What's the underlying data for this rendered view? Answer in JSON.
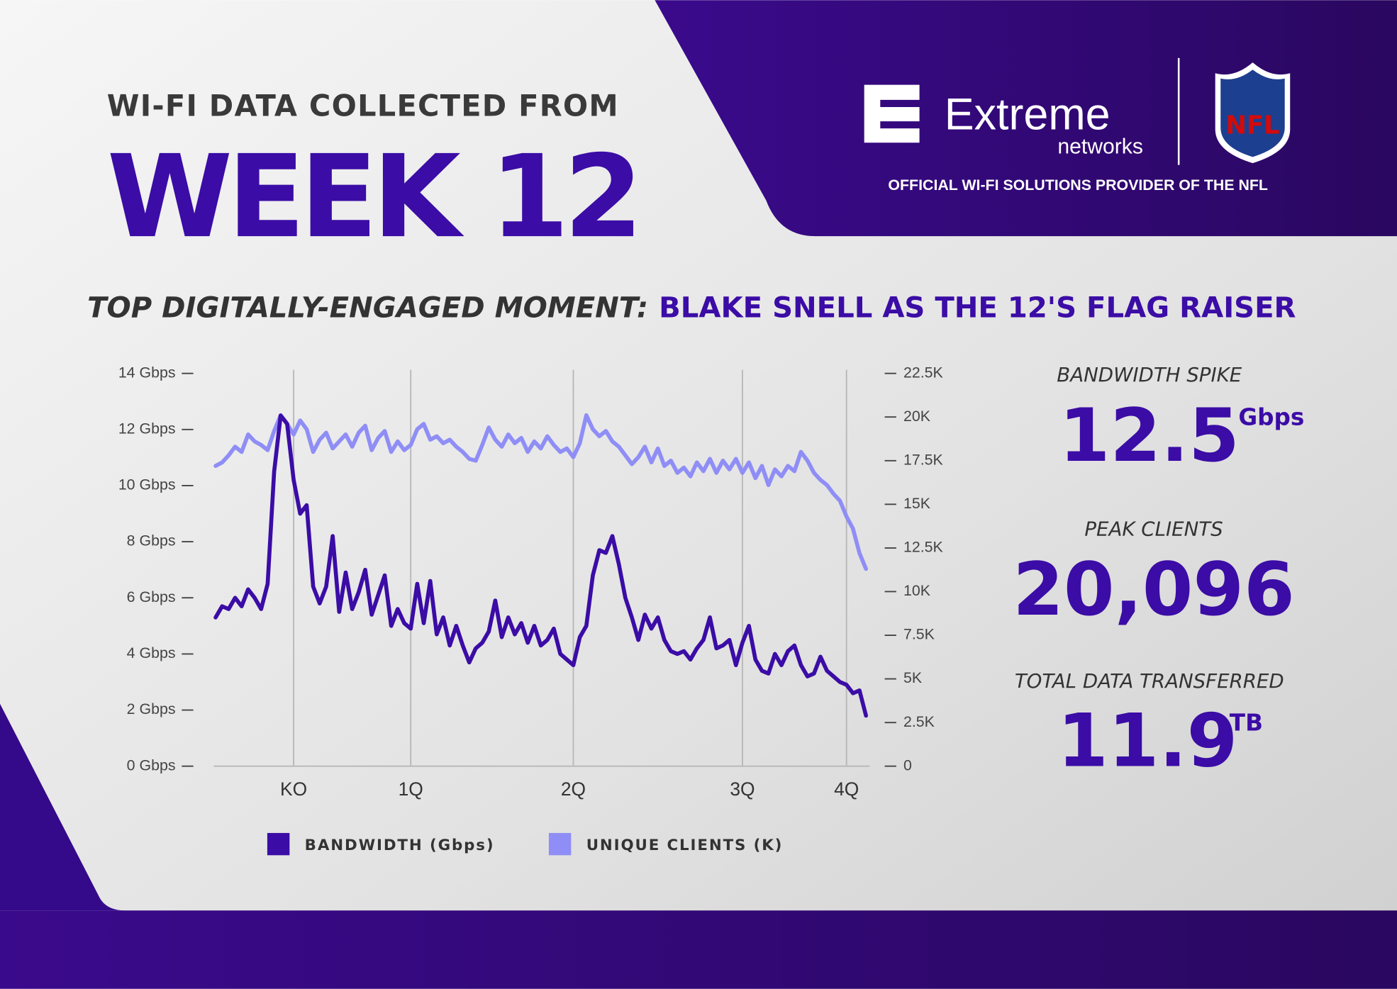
{
  "header": {
    "kicker": "WI-FI DATA COLLECTED FROM",
    "title": "WEEK 12",
    "moment_label": "TOP DIGITALLY-ENGAGED MOMENT:",
    "moment": "BLAKE SNELL AS THE 12'S FLAG RAISER"
  },
  "branding": {
    "brand": "Extreme",
    "brand_sub": "networks",
    "league": "NFL",
    "tagline": "OFFICIAL WI-FI SOLUTIONS PROVIDER OF THE NFL"
  },
  "stats": [
    {
      "label": "BANDWIDTH SPIKE",
      "value": "12.5",
      "unit": "Gbps"
    },
    {
      "label": "PEAK CLIENTS",
      "value": "20,096"
    },
    {
      "label": "TOTAL DATA TRANSFERRED",
      "value": "11.9",
      "unit": "TB"
    }
  ],
  "chart_data": {
    "type": "line",
    "categories": [
      null,
      null,
      null,
      null,
      null,
      null,
      null,
      null,
      null,
      null,
      null,
      null,
      "KO",
      null,
      null,
      null,
      null,
      null,
      null,
      null,
      null,
      null,
      null,
      null,
      null,
      null,
      null,
      null,
      null,
      null,
      "1Q",
      null,
      null,
      null,
      null,
      null,
      null,
      null,
      null,
      null,
      null,
      null,
      null,
      null,
      null,
      null,
      null,
      null,
      null,
      null,
      null,
      null,
      null,
      null,
      null,
      "2Q",
      null,
      null,
      null,
      null,
      null,
      null,
      null,
      null,
      null,
      null,
      null,
      null,
      null,
      null,
      null,
      null,
      null,
      null,
      null,
      null,
      null,
      null,
      null,
      null,
      null,
      "3Q",
      null,
      null,
      null,
      null,
      null,
      null,
      null,
      null,
      null,
      null,
      null,
      null,
      null,
      null,
      null,
      "4Q",
      null,
      null,
      null
    ],
    "series": [
      {
        "name": "BANDWIDTH (Gbps)",
        "color": "#3b0ca6",
        "axis": "y",
        "values": [
          5.3,
          5.7,
          5.6,
          6.0,
          5.7,
          6.3,
          6.0,
          5.6,
          6.5,
          10.5,
          12.5,
          12.2,
          10.2,
          9.0,
          9.3,
          6.4,
          5.8,
          6.4,
          8.2,
          5.5,
          6.9,
          5.6,
          6.2,
          7.0,
          5.4,
          6.1,
          6.8,
          5.0,
          5.6,
          5.1,
          4.9,
          6.5,
          5.1,
          6.6,
          4.7,
          5.3,
          4.3,
          5.0,
          4.3,
          3.7,
          4.2,
          4.4,
          4.8,
          5.9,
          4.6,
          5.3,
          4.7,
          5.1,
          4.4,
          5.0,
          4.3,
          4.5,
          4.9,
          4.0,
          3.8,
          3.6,
          4.6,
          5.0,
          6.8,
          7.7,
          7.6,
          8.2,
          7.2,
          6.0,
          5.3,
          4.5,
          5.4,
          4.9,
          5.3,
          4.5,
          4.1,
          4.0,
          4.1,
          3.8,
          4.2,
          4.5,
          5.3,
          4.2,
          4.3,
          4.5,
          3.6,
          4.4,
          5.0,
          3.8,
          3.4,
          3.3,
          4.0,
          3.6,
          4.1,
          4.3,
          3.6,
          3.2,
          3.3,
          3.9,
          3.4,
          3.2,
          3.0,
          2.9,
          2.6,
          2.7,
          1.8
        ]
      },
      {
        "name": "UNIQUE CLIENTS (K)",
        "color": "#8f8ef6",
        "axis": "y2",
        "values": [
          17.2,
          17.4,
          17.8,
          18.3,
          18.0,
          19.0,
          18.6,
          18.4,
          18.1,
          19.2,
          20.1,
          19.6,
          19.0,
          19.8,
          19.3,
          18.0,
          18.7,
          19.1,
          18.2,
          18.6,
          19.0,
          18.3,
          19.1,
          19.5,
          18.1,
          18.8,
          19.2,
          18.0,
          18.6,
          18.1,
          18.4,
          19.3,
          19.6,
          18.7,
          18.9,
          18.5,
          18.7,
          18.3,
          18.0,
          17.6,
          17.5,
          18.4,
          19.4,
          18.7,
          18.3,
          19.0,
          18.5,
          18.8,
          18.0,
          18.6,
          18.2,
          18.9,
          18.4,
          18.0,
          18.2,
          17.7,
          18.5,
          20.1,
          19.3,
          18.9,
          19.2,
          18.6,
          18.3,
          17.8,
          17.3,
          17.7,
          18.3,
          17.4,
          18.2,
          17.2,
          17.5,
          16.8,
          17.1,
          16.6,
          17.4,
          16.9,
          17.6,
          16.8,
          17.5,
          17.0,
          17.6,
          16.8,
          17.4,
          16.5,
          17.2,
          16.1,
          17.0,
          16.6,
          17.2,
          16.9,
          18.0,
          17.5,
          16.8,
          16.4,
          16.1,
          15.6,
          15.2,
          14.3,
          13.6,
          12.2,
          11.3
        ]
      }
    ],
    "ylim": [
      0,
      14
    ],
    "yticks": [
      {
        "value": 0,
        "label": "0 Gbps"
      },
      {
        "value": 2,
        "label": "2 Gbps"
      },
      {
        "value": 4,
        "label": "4 Gbps"
      },
      {
        "value": 6,
        "label": "6 Gbps"
      },
      {
        "value": 8,
        "label": "8 Gbps"
      },
      {
        "value": 10,
        "label": "10 Gbps"
      },
      {
        "value": 12,
        "label": "12 Gbps"
      },
      {
        "value": 14,
        "label": "14 Gbps"
      }
    ],
    "y2lim": [
      0,
      22.5
    ],
    "y2ticks": [
      0,
      {
        "value": 2.5,
        "label": "2.5K"
      },
      {
        "value": 5,
        "label": "5K"
      },
      {
        "value": 7.5,
        "label": "7.5K"
      },
      {
        "value": 10,
        "label": "10K"
      },
      {
        "value": 12.5,
        "label": "12.5K"
      },
      {
        "value": 15,
        "label": "15K"
      },
      {
        "value": 17.5,
        "label": "17.5K"
      },
      {
        "value": 20,
        "label": "20K"
      },
      {
        "value": 22.5,
        "label": "22.5K"
      }
    ],
    "grid": true,
    "legend": "bottom"
  }
}
